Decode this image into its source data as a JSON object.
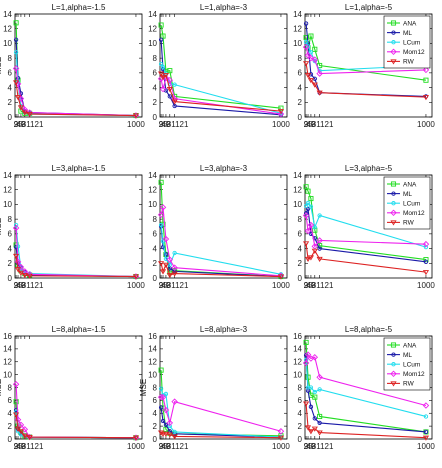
{
  "figure": {
    "series_names": [
      "ANA",
      "ML",
      "LCum",
      "Mom12",
      "RW"
    ],
    "colors": {
      "ANA": "#22dd22",
      "ML": "#1a1aa8",
      "LCum": "#22ddee",
      "Mom12": "#ee22ee",
      "RW": "#dd2222"
    }
  },
  "chart_data": [
    {
      "type": "line",
      "title": "L=1,alpha=-1.5",
      "ylabel": "MSE",
      "xlabel": "",
      "x": [
        9,
        25,
        49,
        81,
        121,
        1000
      ],
      "xticks": [
        "9",
        "25",
        "49",
        "81121",
        "",
        "1000"
      ],
      "ylim": [
        0,
        14
      ],
      "yticks": [
        0,
        2,
        4,
        6,
        8,
        10,
        12,
        14
      ],
      "legend": false,
      "series": [
        {
          "name": "ANA",
          "values": [
            12.8,
            5.0,
            0.8,
            0.5,
            0.5,
            0.2
          ]
        },
        {
          "name": "ML",
          "values": [
            10.5,
            5.3,
            3.2,
            0.8,
            0.6,
            0.2
          ]
        },
        {
          "name": "LCum",
          "values": [
            8.8,
            4.8,
            1.5,
            0.6,
            0.4,
            0.2
          ]
        },
        {
          "name": "Mom12",
          "values": [
            6.6,
            4.5,
            2.5,
            1.0,
            0.6,
            0.2
          ]
        },
        {
          "name": "RW",
          "values": [
            4.7,
            2.7,
            1.3,
            0.6,
            0.4,
            0.2
          ]
        }
      ]
    },
    {
      "type": "line",
      "title": "L=1,alpha=-3",
      "ylabel": "",
      "xlabel": "",
      "x": [
        9,
        25,
        49,
        81,
        121,
        1000
      ],
      "xticks": [
        "9",
        "25",
        "49",
        "81121",
        "",
        "1000"
      ],
      "ylim": [
        0,
        14
      ],
      "yticks": [
        0,
        2,
        4,
        6,
        8,
        10,
        12,
        14
      ],
      "legend": false,
      "series": [
        {
          "name": "ANA",
          "values": [
            12.5,
            11.0,
            6.2,
            6.3,
            2.8,
            1.2
          ]
        },
        {
          "name": "ML",
          "values": [
            10.5,
            6.5,
            3.6,
            2.8,
            1.5,
            0.3
          ]
        },
        {
          "name": "LCum",
          "values": [
            7.2,
            6.8,
            5.9,
            4.5,
            4.4,
            0.5
          ]
        },
        {
          "name": "Mom12",
          "values": [
            5.2,
            3.8,
            5.3,
            5.0,
            2.5,
            0.4
          ]
        },
        {
          "name": "RW",
          "values": [
            5.9,
            5.4,
            5.7,
            3.8,
            2.1,
            0.8
          ]
        }
      ]
    },
    {
      "type": "line",
      "title": "L=1,alpha=-5",
      "ylabel": "",
      "xlabel": "",
      "x": [
        9,
        25,
        49,
        81,
        121,
        1000
      ],
      "xticks": [
        "9",
        "25",
        "49",
        "81121",
        "",
        "1000"
      ],
      "ylim": [
        0,
        14
      ],
      "yticks": [
        0,
        2,
        4,
        6,
        8,
        10,
        12,
        14
      ],
      "legend": true,
      "series": [
        {
          "name": "ANA",
          "values": [
            10.8,
            9.4,
            11.0,
            9.2,
            7.0,
            5.0
          ]
        },
        {
          "name": "ML",
          "values": [
            12.7,
            10.0,
            5.8,
            5.2,
            3.3,
            2.8
          ]
        },
        {
          "name": "LCum",
          "values": [
            10.2,
            9.6,
            8.8,
            7.6,
            6.3,
            7.0
          ]
        },
        {
          "name": "Mom12",
          "values": [
            9.5,
            8.4,
            8.0,
            7.8,
            5.9,
            6.4
          ]
        },
        {
          "name": "RW",
          "values": [
            7.3,
            5.7,
            5.0,
            4.4,
            3.3,
            2.7
          ]
        }
      ]
    },
    {
      "type": "line",
      "title": "L=3,alpha=-1.5",
      "ylabel": "MSE",
      "xlabel": "",
      "x": [
        9,
        25,
        49,
        81,
        121,
        1000
      ],
      "xticks": [
        "9",
        "25",
        "49",
        "81121",
        "",
        "1000"
      ],
      "ylim": [
        0,
        14
      ],
      "yticks": [
        0,
        2,
        4,
        6,
        8,
        10,
        12,
        14
      ],
      "legend": false,
      "series": [
        {
          "name": "ANA",
          "values": [
            4.5,
            1.8,
            1.0,
            0.6,
            0.4,
            0.2
          ]
        },
        {
          "name": "ML",
          "values": [
            4.2,
            2.0,
            1.4,
            0.8,
            0.4,
            0.2
          ]
        },
        {
          "name": "LCum",
          "values": [
            7.2,
            4.3,
            1.3,
            0.7,
            0.6,
            0.2
          ]
        },
        {
          "name": "Mom12",
          "values": [
            6.8,
            2.2,
            1.5,
            0.9,
            0.5,
            0.2
          ]
        },
        {
          "name": "RW",
          "values": [
            3.0,
            1.2,
            0.7,
            0.4,
            0.3,
            0.2
          ]
        }
      ]
    },
    {
      "type": "line",
      "title": "L=3,alpha=-3",
      "ylabel": "",
      "xlabel": "",
      "x": [
        9,
        25,
        49,
        81,
        121,
        1000
      ],
      "xticks": [
        "9",
        "25",
        "49",
        "81121",
        "",
        "1000"
      ],
      "ylim": [
        0,
        14
      ],
      "yticks": [
        0,
        2,
        4,
        6,
        8,
        10,
        12,
        14
      ],
      "legend": false,
      "series": [
        {
          "name": "ANA",
          "values": [
            13.0,
            7.3,
            3.2,
            0.8,
            1.0,
            0.2
          ]
        },
        {
          "name": "ML",
          "values": [
            7.0,
            4.2,
            3.2,
            1.3,
            0.9,
            0.2
          ]
        },
        {
          "name": "LCum",
          "values": [
            7.2,
            5.0,
            2.6,
            1.8,
            3.4,
            0.5
          ]
        },
        {
          "name": "Mom12",
          "values": [
            8.6,
            9.6,
            5.3,
            2.5,
            1.4,
            0.3
          ]
        },
        {
          "name": "RW",
          "values": [
            2.0,
            0.9,
            1.8,
            0.4,
            0.6,
            0.2
          ]
        }
      ]
    },
    {
      "type": "line",
      "title": "L=3,alpha=-5",
      "ylabel": "",
      "xlabel": "",
      "x": [
        9,
        25,
        49,
        81,
        121,
        1000
      ],
      "xticks": [
        "9",
        "25",
        "49",
        "81121",
        "",
        "1000"
      ],
      "ylim": [
        0,
        14
      ],
      "yticks": [
        0,
        2,
        4,
        6,
        8,
        10,
        12,
        14
      ],
      "legend": true,
      "series": [
        {
          "name": "ANA",
          "values": [
            12.4,
            11.8,
            10.8,
            6.5,
            4.4,
            2.5
          ]
        },
        {
          "name": "ML",
          "values": [
            8.8,
            9.4,
            6.0,
            5.4,
            4.0,
            2.2
          ]
        },
        {
          "name": "LCum",
          "values": [
            9.8,
            10.2,
            9.7,
            6.9,
            8.5,
            4.2
          ]
        },
        {
          "name": "Mom12",
          "values": [
            8.5,
            6.4,
            7.2,
            4.3,
            5.1,
            4.6
          ]
        },
        {
          "name": "RW",
          "values": [
            4.7,
            2.6,
            2.8,
            3.7,
            2.6,
            0.8
          ]
        }
      ]
    },
    {
      "type": "line",
      "title": "L=8,alpha=-1.5",
      "ylabel": "MSE",
      "xlabel": "",
      "x": [
        9,
        25,
        49,
        81,
        121,
        1000
      ],
      "xticks": [
        "9",
        "25",
        "49",
        "81121",
        "",
        "1000"
      ],
      "ylim": [
        0,
        16
      ],
      "yticks": [
        0,
        2,
        4,
        6,
        8,
        10,
        12,
        14,
        16
      ],
      "legend": false,
      "series": [
        {
          "name": "ANA",
          "values": [
            5.8,
            2.0,
            1.0,
            0.5,
            0.3,
            0.2
          ]
        },
        {
          "name": "ML",
          "values": [
            4.5,
            1.5,
            0.9,
            0.5,
            0.3,
            0.2
          ]
        },
        {
          "name": "LCum",
          "values": [
            4.2,
            1.2,
            0.7,
            0.5,
            0.3,
            0.2
          ]
        },
        {
          "name": "Mom12",
          "values": [
            8.5,
            3.0,
            2.2,
            1.5,
            0.3,
            0.2
          ]
        },
        {
          "name": "RW",
          "values": [
            3.8,
            1.6,
            1.2,
            0.5,
            0.3,
            0.2
          ]
        }
      ]
    },
    {
      "type": "line",
      "title": "L=8,alpha=-3",
      "ylabel": "MSE",
      "xlabel": "",
      "x": [
        9,
        25,
        49,
        81,
        121,
        1000
      ],
      "xticks": [
        "9",
        "25",
        "49",
        "81121",
        "",
        "1000"
      ],
      "ylim": [
        0,
        16
      ],
      "yticks": [
        0,
        2,
        4,
        6,
        8,
        10,
        12,
        14,
        16
      ],
      "legend": false,
      "series": [
        {
          "name": "ANA",
          "values": [
            10.7,
            4.8,
            1.5,
            0.9,
            0.8,
            0.5
          ]
        },
        {
          "name": "ML",
          "values": [
            4.9,
            2.8,
            2.2,
            1.2,
            0.8,
            0.3
          ]
        },
        {
          "name": "LCum",
          "values": [
            7.8,
            6.8,
            7.0,
            2.0,
            1.1,
            0.3
          ]
        },
        {
          "name": "Mom12",
          "values": [
            6.5,
            6.5,
            4.5,
            2.5,
            5.8,
            1.2
          ]
        },
        {
          "name": "RW",
          "values": [
            1.0,
            0.8,
            0.8,
            0.7,
            0.4,
            0.2
          ]
        }
      ]
    },
    {
      "type": "line",
      "title": "L=8,alpha=-5",
      "ylabel": "",
      "xlabel": "",
      "x": [
        9,
        25,
        49,
        81,
        121,
        1000
      ],
      "xticks": [
        "9",
        "25",
        "49",
        "81121",
        "",
        "1000"
      ],
      "ylim": [
        0,
        16
      ],
      "yticks": [
        0,
        2,
        4,
        6,
        8,
        10,
        12,
        14,
        16
      ],
      "legend": true,
      "series": [
        {
          "name": "ANA",
          "values": [
            15.0,
            9.6,
            6.8,
            6.5,
            3.5,
            1.1
          ]
        },
        {
          "name": "ML",
          "values": [
            13.0,
            7.5,
            5.0,
            3.2,
            2.5,
            1.1
          ]
        },
        {
          "name": "LCum",
          "values": [
            12.3,
            8.0,
            8.0,
            7.3,
            7.7,
            3.5
          ]
        },
        {
          "name": "Mom12",
          "values": [
            11.8,
            13.1,
            12.5,
            12.7,
            9.6,
            5.2
          ]
        },
        {
          "name": "RW",
          "values": [
            5.5,
            1.8,
            1.2,
            1.6,
            1.0,
            0.2
          ]
        }
      ]
    }
  ]
}
